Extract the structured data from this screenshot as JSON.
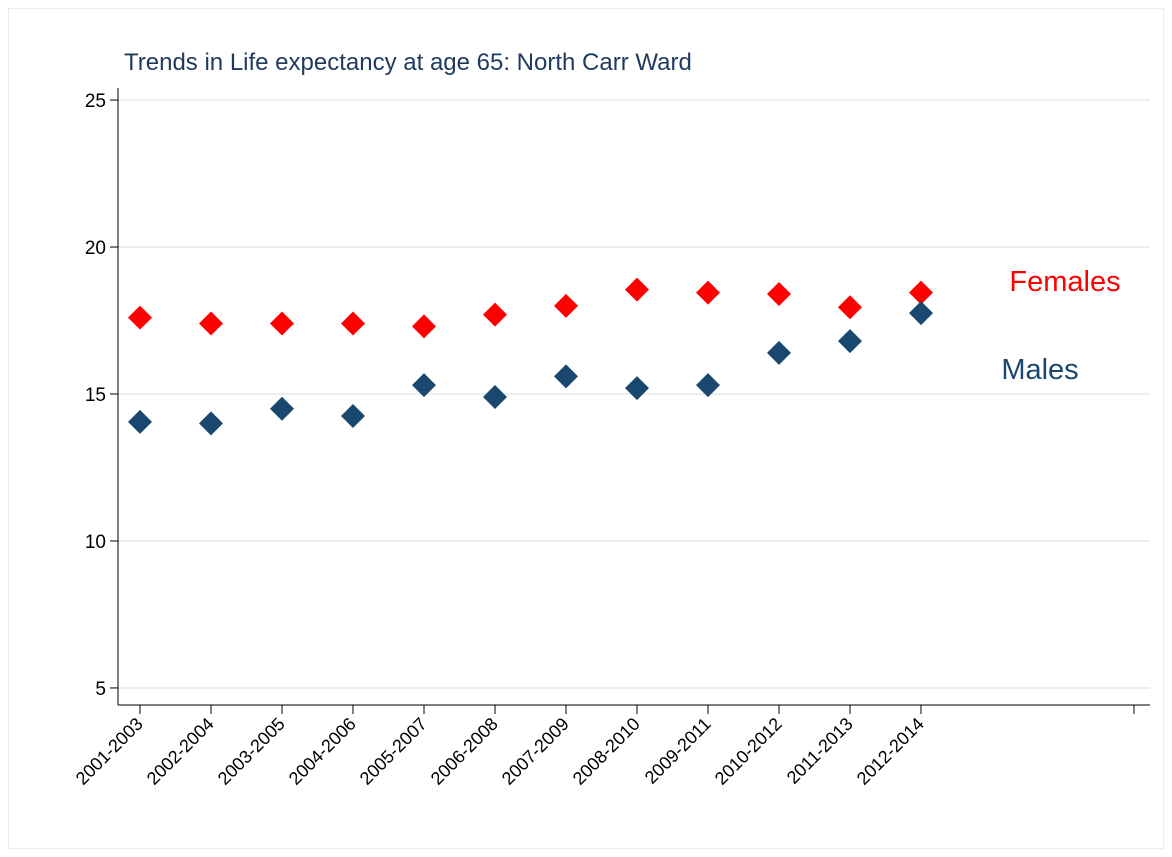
{
  "chart_data": {
    "type": "scatter",
    "title": "Trends in Life expectancy at age 65: North Carr Ward",
    "categories": [
      "2001-2003",
      "2002-2004",
      "2003-2005",
      "2004-2006",
      "2005-2007",
      "2006-2008",
      "2007-2009",
      "2008-2010",
      "2009-2011",
      "2010-2012",
      "2011-2013",
      "2012-2014",
      null,
      null,
      null
    ],
    "series": [
      {
        "name": "Females",
        "color": "#ff0000",
        "values": [
          17.6,
          17.4,
          17.4,
          17.4,
          17.3,
          17.7,
          18.0,
          18.55,
          18.45,
          18.4,
          17.95,
          18.45,
          null,
          null,
          null
        ]
      },
      {
        "name": "Males",
        "color": "#1a476f",
        "values": [
          14.05,
          14.0,
          14.5,
          14.25,
          15.3,
          14.9,
          15.6,
          15.2,
          15.3,
          16.4,
          16.8,
          17.75,
          null,
          null,
          null
        ]
      }
    ],
    "ylim": [
      4.42,
      25.41
    ],
    "yticks": [
      5,
      10,
      15,
      20,
      25
    ],
    "grid": true
  }
}
